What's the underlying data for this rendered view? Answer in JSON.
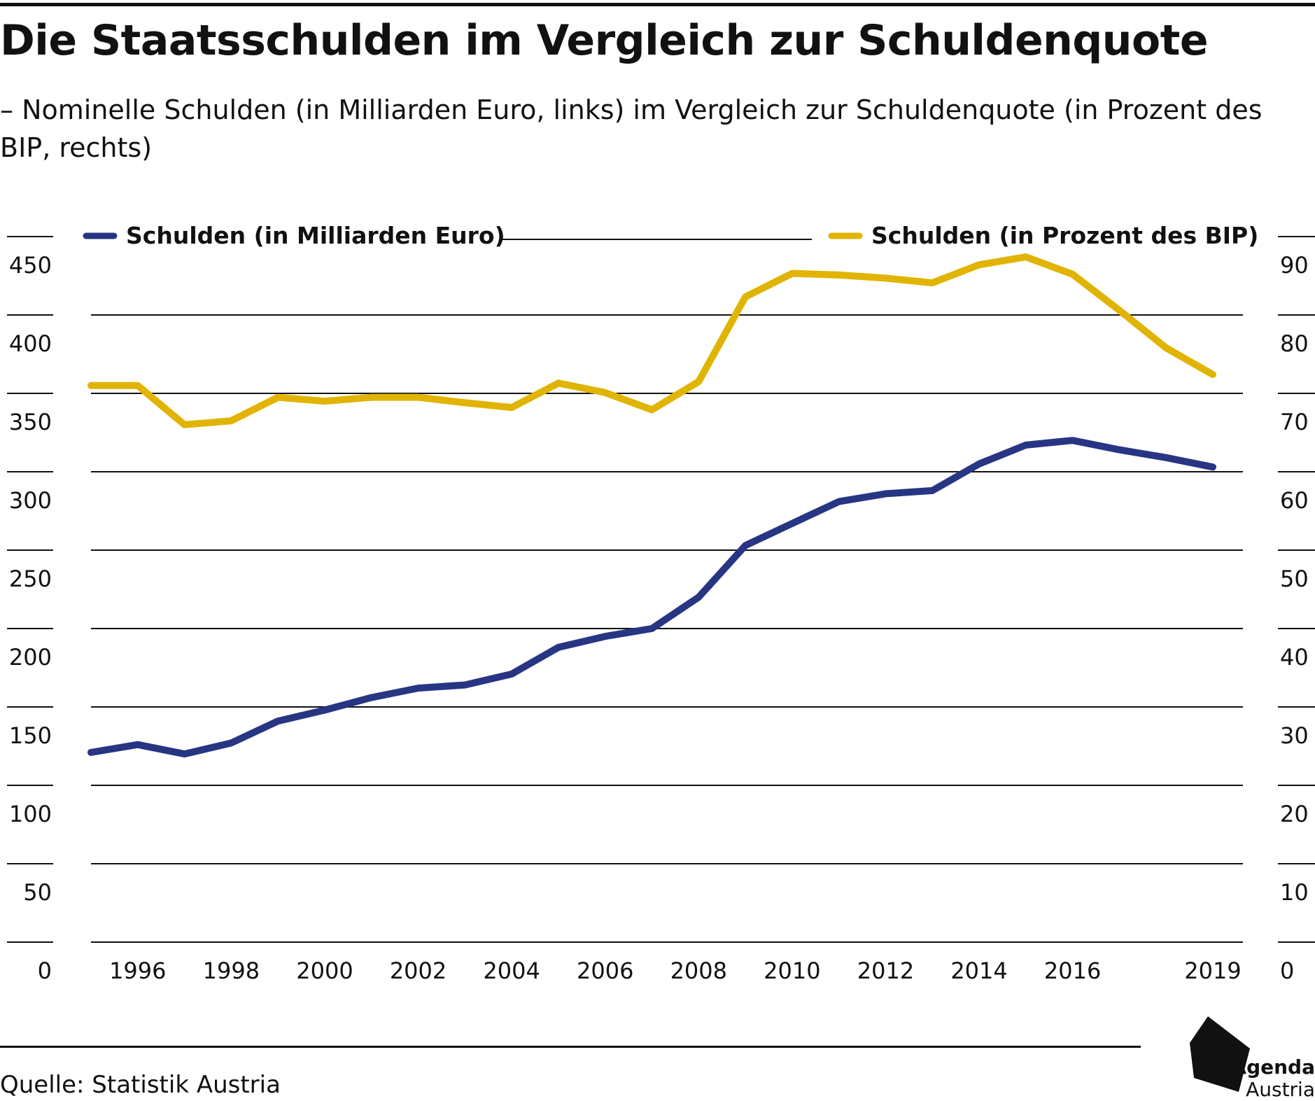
{
  "title": "Die Staatsschulden im Vergleich zur Schuldenquote",
  "subtitle": "– Nominelle Schulden (in Milliarden Euro, links) im Vergleich zur Schuldenquote (in Prozent des BIP, rechts)",
  "source": "Quelle: Statistik Austria",
  "logo": {
    "line1": "Agenda",
    "line2": "Austria"
  },
  "colors": {
    "debt_bn": "#283583",
    "debt_pct": "#e0b400",
    "grid": "#111111"
  },
  "chart_data": {
    "type": "line",
    "legend": [
      "Schulden (in Milliarden Euro)",
      "Schulden (in Prozent des BIP)"
    ],
    "legend_position": "top",
    "x": [
      1995,
      1996,
      1997,
      1998,
      1999,
      2000,
      2001,
      2002,
      2003,
      2004,
      2005,
      2006,
      2007,
      2008,
      2009,
      2010,
      2011,
      2012,
      2013,
      2014,
      2015,
      2016,
      2017,
      2018,
      2019
    ],
    "x_tick_labels": [
      "1996",
      "1998",
      "2000",
      "2002",
      "2004",
      "2006",
      "2008",
      "2010",
      "2012",
      "2014",
      "2016",
      "2019"
    ],
    "y_left_ticks": [
      "0",
      "50",
      "100",
      "150",
      "200",
      "250",
      "300",
      "350",
      "400",
      "450"
    ],
    "y_right_ticks": [
      "0",
      "10",
      "20",
      "30",
      "40",
      "50",
      "60",
      "70",
      "80",
      "90"
    ],
    "ylim_left": [
      0,
      450
    ],
    "ylim_right": [
      0,
      90
    ],
    "grid": true,
    "series": [
      {
        "name": "Schulden (in Milliarden Euro)",
        "axis": "left",
        "values": [
          121,
          126,
          120,
          127,
          141,
          148,
          156,
          162,
          164,
          171,
          188,
          195,
          200,
          220,
          253,
          267,
          281,
          286,
          288,
          305,
          317,
          320,
          314,
          309,
          303
        ]
      },
      {
        "name": "Schulden (in Prozent des BIP)",
        "axis": "right",
        "values": [
          71,
          71,
          66,
          66.5,
          69.5,
          69,
          69.5,
          69.5,
          68.8,
          68.2,
          71.3,
          70.1,
          67.9,
          71.5,
          82.3,
          85.3,
          85.1,
          84.7,
          84.1,
          86.4,
          87.4,
          85.2,
          80.6,
          75.8,
          72.4
        ]
      }
    ]
  }
}
